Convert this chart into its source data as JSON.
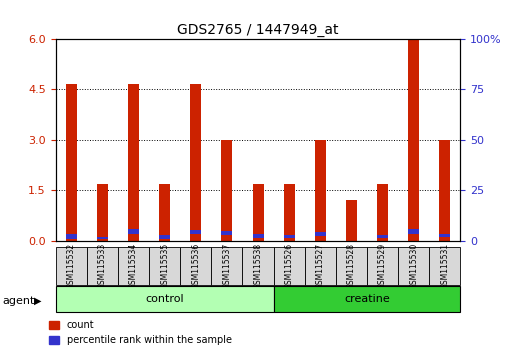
{
  "title": "GDS2765 / 1447949_at",
  "samples": [
    "GSM115532",
    "GSM115533",
    "GSM115534",
    "GSM115535",
    "GSM115536",
    "GSM115537",
    "GSM115538",
    "GSM115526",
    "GSM115527",
    "GSM115528",
    "GSM115529",
    "GSM115530",
    "GSM115531"
  ],
  "count_values": [
    4.65,
    1.7,
    4.65,
    1.7,
    4.65,
    3.0,
    1.7,
    1.7,
    3.0,
    1.2,
    1.7,
    6.0,
    3.0
  ],
  "blue_bottom": [
    0.05,
    0.05,
    0.2,
    0.05,
    0.2,
    0.18,
    0.08,
    0.08,
    0.15,
    0.0,
    0.08,
    0.2,
    0.1
  ],
  "blue_height": [
    0.15,
    0.07,
    0.15,
    0.12,
    0.12,
    0.1,
    0.12,
    0.1,
    0.12,
    0.0,
    0.1,
    0.15,
    0.1
  ],
  "groups": [
    {
      "label": "control",
      "start": 0,
      "end": 6,
      "color": "#b3ffb3"
    },
    {
      "label": "creatine",
      "start": 7,
      "end": 12,
      "color": "#33cc33"
    }
  ],
  "group_row_label": "agent",
  "bar_color_red": "#cc2200",
  "bar_color_blue": "#3333cc",
  "ylim_left": [
    0,
    6
  ],
  "ylim_right": [
    0,
    100
  ],
  "yticks_left": [
    0,
    1.5,
    3,
    4.5,
    6
  ],
  "yticks_right": [
    0,
    25,
    50,
    75,
    100
  ],
  "legend_count": "count",
  "legend_percentile": "percentile rank within the sample",
  "background_color": "#ffffff",
  "tick_label_color_left": "#cc2200",
  "tick_label_color_right": "#3333cc",
  "bar_width": 0.35
}
